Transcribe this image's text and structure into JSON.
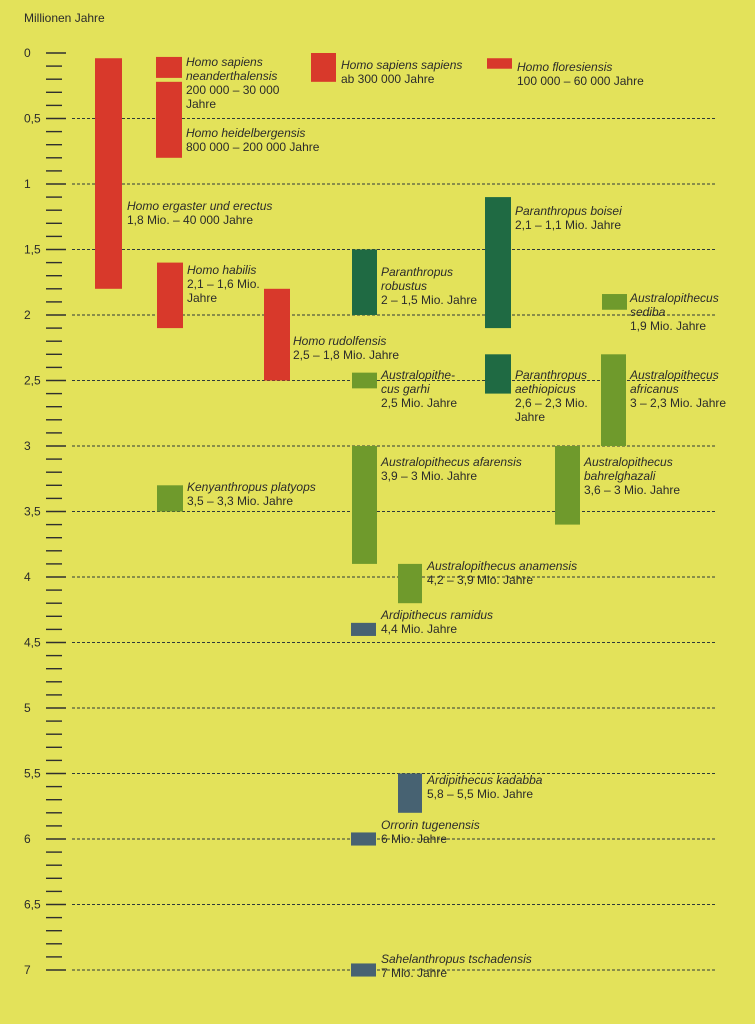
{
  "chart_data": {
    "type": "bar",
    "title": "",
    "ylabel": "Millionen Jahre",
    "ylim": [
      0,
      7
    ],
    "y_ticks": [
      "0",
      "0,5",
      "1",
      "1,5",
      "2",
      "2,5",
      "3",
      "3,5",
      "4",
      "4,5",
      "5",
      "5,5",
      "6",
      "6,5",
      "7"
    ],
    "grid": true,
    "group_colors": {
      "homo": "#d8392b",
      "paranthropus": "#1f6a43",
      "australopithecus": "#6f9a2c",
      "early": "#476272"
    },
    "taxa": [
      {
        "name": [
          "Homo sapiens",
          "neanderthalensis"
        ],
        "range": [
          "200 000 – 30 000",
          "Jahre"
        ],
        "start": 0.2,
        "end": 0.03,
        "group": "homo"
      },
      {
        "name": [
          "Homo heidelbergensis"
        ],
        "range": [
          "800 000 – 200 000 Jahre"
        ],
        "start": 0.8,
        "end": 0.2,
        "group": "homo"
      },
      {
        "name": [
          "Homo sapiens sapiens"
        ],
        "range": [
          "ab 300 000 Jahre"
        ],
        "start": 0.3,
        "end": 0.0,
        "group": "homo"
      },
      {
        "name": [
          "Homo floresiensis"
        ],
        "range": [
          "100 000 – 60 000 Jahre"
        ],
        "start": 0.1,
        "end": 0.06,
        "group": "homo"
      },
      {
        "name": [
          "Homo ergaster und erectus"
        ],
        "range": [
          "1,8 Mio. – 40 000 Jahre"
        ],
        "start": 1.8,
        "end": 0.04,
        "group": "homo"
      },
      {
        "name": [
          "Homo habilis"
        ],
        "range": [
          "2,1 – 1,6 Mio.",
          "Jahre"
        ],
        "start": 2.1,
        "end": 1.6,
        "group": "homo"
      },
      {
        "name": [
          "Homo rudolfensis"
        ],
        "range": [
          "2,5 – 1,8 Mio. Jahre"
        ],
        "start": 2.5,
        "end": 1.8,
        "group": "homo"
      },
      {
        "name": [
          "Paranthropus boisei"
        ],
        "range": [
          "2,1 – 1,1 Mio. Jahre"
        ],
        "start": 2.1,
        "end": 1.1,
        "group": "paranthropus"
      },
      {
        "name": [
          "Paranthropus",
          "robustus"
        ],
        "range": [
          "2 – 1,5 Mio. Jahre"
        ],
        "start": 2.0,
        "end": 1.5,
        "group": "paranthropus"
      },
      {
        "name": [
          "Paranthropus",
          "aethiopicus"
        ],
        "range": [
          "2,6 – 2,3 Mio.",
          "Jahre"
        ],
        "start": 2.6,
        "end": 2.3,
        "group": "paranthropus"
      },
      {
        "name": [
          "Australopithecus",
          "sediba"
        ],
        "range": [
          "1,9 Mio. Jahre"
        ],
        "start": 1.9,
        "end": 1.9,
        "group": "australopithecus"
      },
      {
        "name": [
          "Australopithe-",
          "cus garhi"
        ],
        "range": [
          "2,5 Mio. Jahre"
        ],
        "start": 2.5,
        "end": 2.5,
        "group": "australopithecus"
      },
      {
        "name": [
          "Australopithecus",
          "africanus"
        ],
        "range": [
          "3 – 2,3 Mio. Jahre"
        ],
        "start": 3.0,
        "end": 2.3,
        "group": "australopithecus"
      },
      {
        "name": [
          "Kenyanthropus platyops"
        ],
        "range": [
          "3,5 – 3,3 Mio. Jahre"
        ],
        "start": 3.5,
        "end": 3.3,
        "group": "australopithecus"
      },
      {
        "name": [
          "Australopithecus afarensis"
        ],
        "range": [
          "3,9 – 3 Mio. Jahre"
        ],
        "start": 3.9,
        "end": 3.0,
        "group": "australopithecus"
      },
      {
        "name": [
          "Australopithecus",
          "bahrelghazali"
        ],
        "range": [
          "3,6 – 3 Mio. Jahre"
        ],
        "start": 3.6,
        "end": 3.0,
        "group": "australopithecus"
      },
      {
        "name": [
          "Australopithecus anamensis"
        ],
        "range": [
          "4,2 – 3,9 Mio. Jahre"
        ],
        "start": 4.2,
        "end": 3.9,
        "group": "australopithecus"
      },
      {
        "name": [
          "Ardipithecus ramidus"
        ],
        "range": [
          "4,4 Mio. Jahre"
        ],
        "start": 4.4,
        "end": 4.4,
        "group": "early"
      },
      {
        "name": [
          "Ardipithecus kadabba"
        ],
        "range": [
          "5,8 – 5,5 Mio. Jahre"
        ],
        "start": 5.8,
        "end": 5.5,
        "group": "early"
      },
      {
        "name": [
          "Orrorin tugenensis"
        ],
        "range": [
          "6 Mio. Jahre"
        ],
        "start": 6.0,
        "end": 6.0,
        "group": "early"
      },
      {
        "name": [
          "Sahelanthropus tschadensis"
        ],
        "range": [
          "7 Mio. Jahre"
        ],
        "start": 7.0,
        "end": 7.0,
        "group": "early"
      }
    ]
  }
}
